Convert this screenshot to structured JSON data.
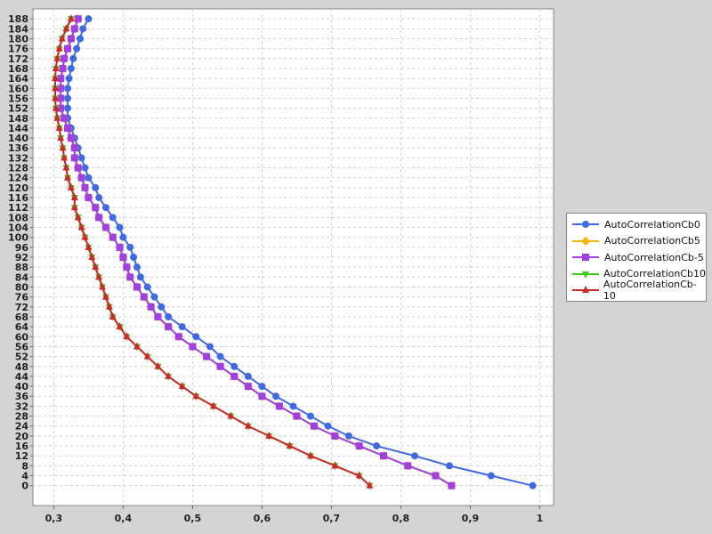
{
  "chart_data": {
    "type": "line",
    "orientation": "horizontal",
    "title": "",
    "xlabel": "",
    "ylabel": "",
    "xlim": [
      0.27,
      1.02
    ],
    "ylim": [
      -8,
      192
    ],
    "x_ticks": [
      0.3,
      0.4,
      0.5,
      0.6,
      0.7,
      0.8,
      0.9,
      1.0
    ],
    "x_tick_labels": [
      "0,3",
      "0,4",
      "0,5",
      "0,6",
      "0,7",
      "0,8",
      "0,9",
      "1"
    ],
    "y_ticks": [
      0,
      4,
      8,
      12,
      16,
      20,
      24,
      28,
      32,
      36,
      40,
      44,
      48,
      52,
      56,
      60,
      64,
      68,
      72,
      76,
      80,
      84,
      88,
      92,
      96,
      100,
      104,
      108,
      112,
      116,
      120,
      124,
      128,
      132,
      136,
      140,
      144,
      148,
      152,
      156,
      160,
      164,
      168,
      172,
      176,
      180,
      184,
      188
    ],
    "grid": true,
    "legend_position": "right",
    "series": [
      {
        "name": "AutoCorrelationCb0",
        "color": "#4169e1",
        "marker": "circle",
        "points": [
          [
            0.99,
            0
          ],
          [
            0.93,
            4
          ],
          [
            0.87,
            8
          ],
          [
            0.82,
            12
          ],
          [
            0.765,
            16
          ],
          [
            0.725,
            20
          ],
          [
            0.695,
            24
          ],
          [
            0.67,
            28
          ],
          [
            0.645,
            32
          ],
          [
            0.62,
            36
          ],
          [
            0.6,
            40
          ],
          [
            0.58,
            44
          ],
          [
            0.56,
            48
          ],
          [
            0.54,
            52
          ],
          [
            0.525,
            56
          ],
          [
            0.505,
            60
          ],
          [
            0.485,
            64
          ],
          [
            0.465,
            68
          ],
          [
            0.455,
            72
          ],
          [
            0.445,
            76
          ],
          [
            0.435,
            80
          ],
          [
            0.425,
            84
          ],
          [
            0.42,
            88
          ],
          [
            0.415,
            92
          ],
          [
            0.41,
            96
          ],
          [
            0.4,
            100
          ],
          [
            0.395,
            104
          ],
          [
            0.385,
            108
          ],
          [
            0.375,
            112
          ],
          [
            0.365,
            116
          ],
          [
            0.36,
            120
          ],
          [
            0.35,
            124
          ],
          [
            0.345,
            128
          ],
          [
            0.34,
            132
          ],
          [
            0.335,
            136
          ],
          [
            0.33,
            140
          ],
          [
            0.325,
            144
          ],
          [
            0.32,
            148
          ],
          [
            0.32,
            152
          ],
          [
            0.32,
            156
          ],
          [
            0.32,
            160
          ],
          [
            0.322,
            164
          ],
          [
            0.325,
            168
          ],
          [
            0.328,
            172
          ],
          [
            0.333,
            176
          ],
          [
            0.338,
            180
          ],
          [
            0.342,
            184
          ],
          [
            0.35,
            188
          ]
        ]
      },
      {
        "name": "AutoCorrelationCb5",
        "color": "#f5b800",
        "marker": "diamond",
        "points": [
          [
            0.873,
            0
          ],
          [
            0.85,
            4
          ],
          [
            0.81,
            8
          ],
          [
            0.775,
            12
          ],
          [
            0.74,
            16
          ],
          [
            0.705,
            20
          ],
          [
            0.675,
            24
          ],
          [
            0.65,
            28
          ],
          [
            0.625,
            32
          ],
          [
            0.6,
            36
          ],
          [
            0.58,
            40
          ],
          [
            0.56,
            44
          ],
          [
            0.54,
            48
          ],
          [
            0.52,
            52
          ],
          [
            0.5,
            56
          ],
          [
            0.48,
            60
          ],
          [
            0.465,
            64
          ],
          [
            0.45,
            68
          ],
          [
            0.44,
            72
          ],
          [
            0.43,
            76
          ],
          [
            0.42,
            80
          ],
          [
            0.41,
            84
          ],
          [
            0.405,
            88
          ],
          [
            0.4,
            92
          ],
          [
            0.395,
            96
          ],
          [
            0.385,
            100
          ],
          [
            0.375,
            104
          ],
          [
            0.365,
            108
          ],
          [
            0.36,
            112
          ],
          [
            0.35,
            116
          ],
          [
            0.345,
            120
          ],
          [
            0.34,
            124
          ],
          [
            0.335,
            128
          ],
          [
            0.33,
            132
          ],
          [
            0.33,
            136
          ],
          [
            0.325,
            140
          ],
          [
            0.32,
            144
          ],
          [
            0.315,
            148
          ],
          [
            0.31,
            152
          ],
          [
            0.31,
            156
          ],
          [
            0.31,
            160
          ],
          [
            0.31,
            164
          ],
          [
            0.313,
            168
          ],
          [
            0.315,
            172
          ],
          [
            0.32,
            176
          ],
          [
            0.325,
            180
          ],
          [
            0.33,
            184
          ],
          [
            0.335,
            188
          ]
        ]
      },
      {
        "name": "AutoCorrelationCb-5",
        "color": "#a040e0",
        "marker": "square",
        "points": [
          [
            0.873,
            0
          ],
          [
            0.85,
            4
          ],
          [
            0.81,
            8
          ],
          [
            0.775,
            12
          ],
          [
            0.74,
            16
          ],
          [
            0.705,
            20
          ],
          [
            0.675,
            24
          ],
          [
            0.65,
            28
          ],
          [
            0.625,
            32
          ],
          [
            0.6,
            36
          ],
          [
            0.58,
            40
          ],
          [
            0.56,
            44
          ],
          [
            0.54,
            48
          ],
          [
            0.52,
            52
          ],
          [
            0.5,
            56
          ],
          [
            0.48,
            60
          ],
          [
            0.465,
            64
          ],
          [
            0.45,
            68
          ],
          [
            0.44,
            72
          ],
          [
            0.43,
            76
          ],
          [
            0.42,
            80
          ],
          [
            0.41,
            84
          ],
          [
            0.405,
            88
          ],
          [
            0.4,
            92
          ],
          [
            0.395,
            96
          ],
          [
            0.385,
            100
          ],
          [
            0.375,
            104
          ],
          [
            0.365,
            108
          ],
          [
            0.36,
            112
          ],
          [
            0.35,
            116
          ],
          [
            0.345,
            120
          ],
          [
            0.34,
            124
          ],
          [
            0.335,
            128
          ],
          [
            0.33,
            132
          ],
          [
            0.33,
            136
          ],
          [
            0.325,
            140
          ],
          [
            0.32,
            144
          ],
          [
            0.315,
            148
          ],
          [
            0.31,
            152
          ],
          [
            0.31,
            156
          ],
          [
            0.31,
            160
          ],
          [
            0.31,
            164
          ],
          [
            0.313,
            168
          ],
          [
            0.315,
            172
          ],
          [
            0.32,
            176
          ],
          [
            0.325,
            180
          ],
          [
            0.33,
            184
          ],
          [
            0.335,
            188
          ]
        ]
      },
      {
        "name": "AutoCorrelationCb10",
        "color": "#44cc22",
        "marker": "triangle-down",
        "points": [
          [
            0.755,
            0
          ],
          [
            0.74,
            4
          ],
          [
            0.705,
            8
          ],
          [
            0.67,
            12
          ],
          [
            0.64,
            16
          ],
          [
            0.61,
            20
          ],
          [
            0.58,
            24
          ],
          [
            0.555,
            28
          ],
          [
            0.53,
            32
          ],
          [
            0.505,
            36
          ],
          [
            0.485,
            40
          ],
          [
            0.465,
            44
          ],
          [
            0.45,
            48
          ],
          [
            0.435,
            52
          ],
          [
            0.42,
            56
          ],
          [
            0.405,
            60
          ],
          [
            0.395,
            64
          ],
          [
            0.385,
            68
          ],
          [
            0.38,
            72
          ],
          [
            0.375,
            76
          ],
          [
            0.37,
            80
          ],
          [
            0.365,
            84
          ],
          [
            0.36,
            88
          ],
          [
            0.355,
            92
          ],
          [
            0.35,
            96
          ],
          [
            0.345,
            100
          ],
          [
            0.34,
            104
          ],
          [
            0.335,
            108
          ],
          [
            0.33,
            112
          ],
          [
            0.33,
            116
          ],
          [
            0.325,
            120
          ],
          [
            0.32,
            124
          ],
          [
            0.318,
            128
          ],
          [
            0.315,
            132
          ],
          [
            0.313,
            136
          ],
          [
            0.31,
            140
          ],
          [
            0.308,
            144
          ],
          [
            0.305,
            148
          ],
          [
            0.303,
            152
          ],
          [
            0.302,
            156
          ],
          [
            0.302,
            160
          ],
          [
            0.302,
            164
          ],
          [
            0.303,
            168
          ],
          [
            0.305,
            172
          ],
          [
            0.308,
            176
          ],
          [
            0.312,
            180
          ],
          [
            0.318,
            184
          ],
          [
            0.325,
            188
          ]
        ]
      },
      {
        "name": "AutoCorrelationCb-10",
        "color": "#cc2a2a",
        "marker": "triangle-up",
        "points": [
          [
            0.755,
            0
          ],
          [
            0.74,
            4
          ],
          [
            0.705,
            8
          ],
          [
            0.67,
            12
          ],
          [
            0.64,
            16
          ],
          [
            0.61,
            20
          ],
          [
            0.58,
            24
          ],
          [
            0.555,
            28
          ],
          [
            0.53,
            32
          ],
          [
            0.505,
            36
          ],
          [
            0.485,
            40
          ],
          [
            0.465,
            44
          ],
          [
            0.45,
            48
          ],
          [
            0.435,
            52
          ],
          [
            0.42,
            56
          ],
          [
            0.405,
            60
          ],
          [
            0.395,
            64
          ],
          [
            0.385,
            68
          ],
          [
            0.38,
            72
          ],
          [
            0.375,
            76
          ],
          [
            0.37,
            80
          ],
          [
            0.365,
            84
          ],
          [
            0.36,
            88
          ],
          [
            0.355,
            92
          ],
          [
            0.35,
            96
          ],
          [
            0.345,
            100
          ],
          [
            0.34,
            104
          ],
          [
            0.335,
            108
          ],
          [
            0.33,
            112
          ],
          [
            0.33,
            116
          ],
          [
            0.325,
            120
          ],
          [
            0.32,
            124
          ],
          [
            0.318,
            128
          ],
          [
            0.315,
            132
          ],
          [
            0.313,
            136
          ],
          [
            0.31,
            140
          ],
          [
            0.308,
            144
          ],
          [
            0.305,
            148
          ],
          [
            0.303,
            152
          ],
          [
            0.302,
            156
          ],
          [
            0.302,
            160
          ],
          [
            0.302,
            164
          ],
          [
            0.303,
            168
          ],
          [
            0.305,
            172
          ],
          [
            0.308,
            176
          ],
          [
            0.312,
            180
          ],
          [
            0.318,
            184
          ],
          [
            0.325,
            188
          ]
        ]
      }
    ]
  }
}
